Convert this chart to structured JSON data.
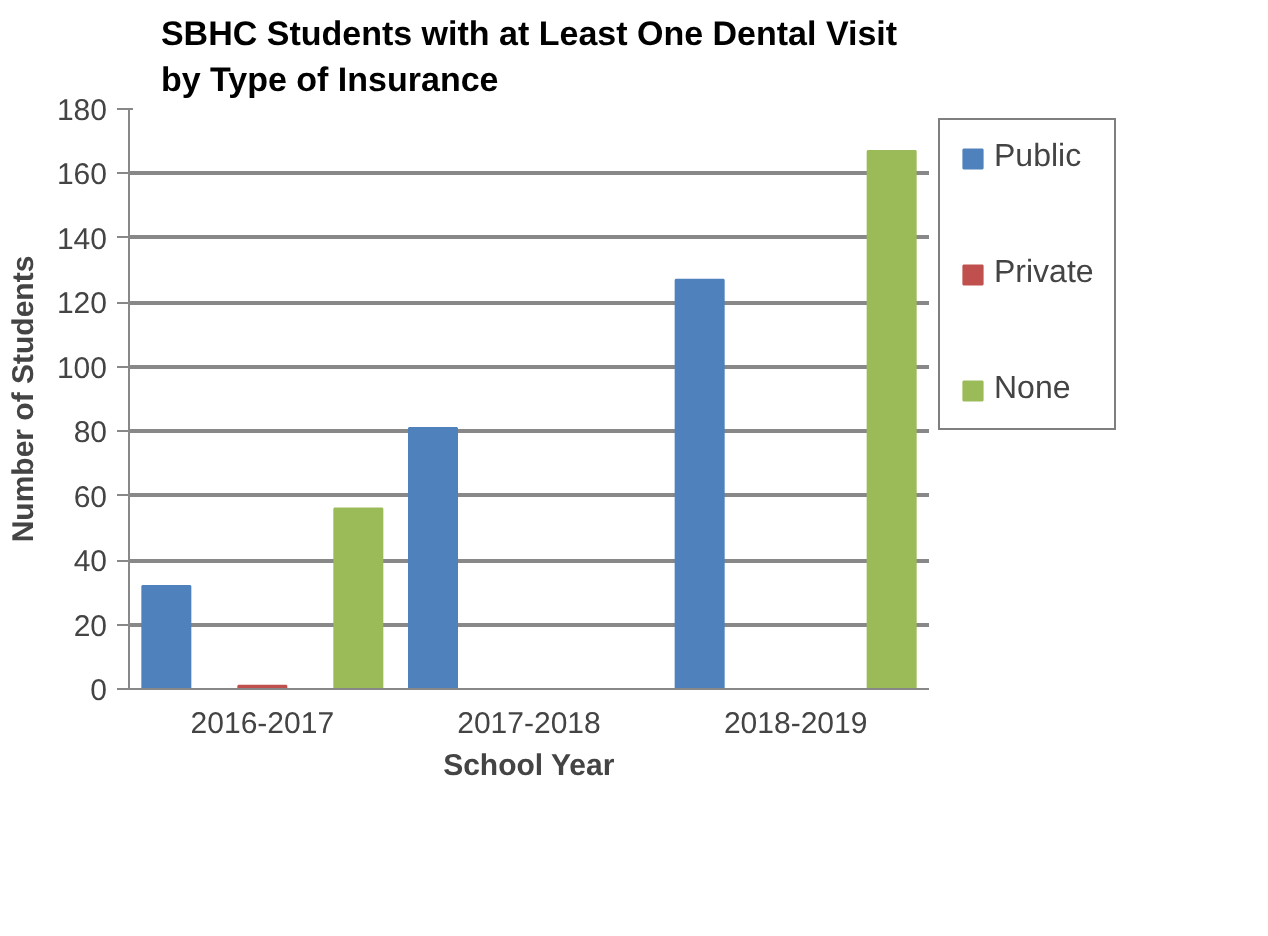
{
  "chart_data": {
    "type": "bar",
    "title": "SBHC Students with at Least One Dental Visit\nby Type of Insurance",
    "xlabel": "School Year",
    "ylabel": "Number of Students",
    "categories": [
      "2016-2017",
      "2017-2018",
      "2018-2019"
    ],
    "series": [
      {
        "name": "Public",
        "color": "#4f81bd",
        "values": [
          32,
          81,
          127
        ]
      },
      {
        "name": "Private",
        "color": "#c0504d",
        "values": [
          1,
          0,
          0
        ]
      },
      {
        "name": "None",
        "color": "#9bbb59",
        "values": [
          56,
          0,
          167
        ]
      }
    ],
    "ylim": [
      0,
      180
    ],
    "yticks": [
      0,
      20,
      40,
      60,
      80,
      100,
      120,
      140,
      160,
      180
    ],
    "grid": "y",
    "legend": "right"
  }
}
